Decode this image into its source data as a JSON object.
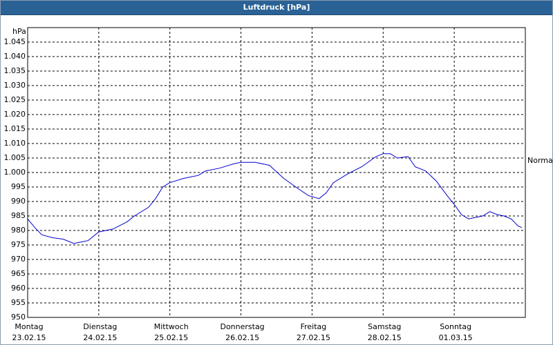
{
  "chart_data": {
    "type": "line",
    "title": "Luftdruck [hPa]",
    "ylabel": "hPa",
    "annotation": "Normal",
    "color": "#0000cc",
    "grid": true,
    "xlim": [
      0,
      7
    ],
    "ylim": [
      950,
      1050
    ],
    "xticks": [
      {
        "value": 0,
        "label": "Montag"
      },
      {
        "value": 1,
        "label": "Dienstag"
      },
      {
        "value": 2,
        "label": "Mittwoch"
      },
      {
        "value": 3,
        "label": "Donnerstag"
      },
      {
        "value": 4,
        "label": "Freitag"
      },
      {
        "value": 5,
        "label": "Samstag"
      },
      {
        "value": 6,
        "label": "Sonntag"
      }
    ],
    "xtick_dates": [
      "23.02.15",
      "24.02.15",
      "25.02.15",
      "26.02.15",
      "27.02.15",
      "28.02.15",
      "01.03.15"
    ],
    "yticks": [
      950,
      955,
      960,
      965,
      970,
      975,
      980,
      985,
      990,
      995,
      {
        "value": 1000,
        "label": "1.000"
      },
      {
        "value": 1005,
        "label": "1.005"
      },
      {
        "value": 1010,
        "label": "1.010"
      },
      {
        "value": 1015,
        "label": "1.015"
      },
      {
        "value": 1020,
        "label": "1.020"
      },
      {
        "value": 1025,
        "label": "1.025"
      },
      {
        "value": 1030,
        "label": "1.030"
      },
      {
        "value": 1035,
        "label": "1.035"
      },
      {
        "value": 1040,
        "label": "1.040"
      },
      {
        "value": 1045,
        "label": "1.045"
      }
    ],
    "x": [
      0,
      0.1,
      0.2,
      0.35,
      0.5,
      0.65,
      0.75,
      0.85,
      1.0,
      1.2,
      1.4,
      1.5,
      1.7,
      1.8,
      1.9,
      2.0,
      2.2,
      2.4,
      2.5,
      2.7,
      2.9,
      3.0,
      3.2,
      3.4,
      3.6,
      3.8,
      3.95,
      4.1,
      4.2,
      4.3,
      4.5,
      4.7,
      4.9,
      5.0,
      5.1,
      5.2,
      5.35,
      5.45,
      5.6,
      5.75,
      5.9,
      6.0,
      6.1,
      6.2,
      6.3,
      6.4,
      6.5,
      6.6,
      6.7,
      6.8,
      6.9,
      6.95
    ],
    "values": [
      984,
      981,
      978.5,
      977.5,
      977,
      975.5,
      976,
      976.5,
      979.5,
      980.5,
      983,
      985,
      988,
      991,
      995,
      996.5,
      998,
      999,
      1000.5,
      1001.5,
      1003,
      1003.5,
      1003.5,
      1002.5,
      998,
      994.5,
      992,
      991,
      993,
      996.5,
      999.5,
      1002,
      1005.5,
      1006.5,
      1006.5,
      1005,
      1005.5,
      1002,
      1000.5,
      997,
      992,
      989,
      985.5,
      984,
      984.5,
      985,
      986.5,
      985.5,
      985,
      984,
      981.5,
      981
    ]
  }
}
